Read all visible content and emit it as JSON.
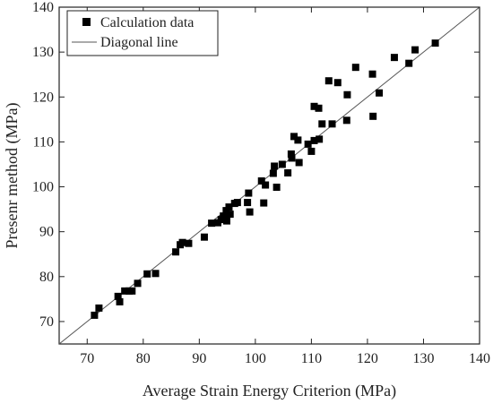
{
  "chart_data": {
    "type": "scatter",
    "xlabel": "Average Strain Energy Criterion (MPa)",
    "ylabel": "Presenr method (MPa)",
    "xlim": [
      65,
      140
    ],
    "ylim": [
      65,
      140
    ],
    "xticks": [
      70,
      80,
      90,
      100,
      110,
      120,
      130,
      140
    ],
    "yticks": [
      70,
      80,
      90,
      100,
      110,
      120,
      130,
      140
    ],
    "grid": false,
    "legend": "top-left",
    "series": [
      {
        "name": "Calculation data",
        "marker": "square",
        "color": "#000000",
        "points": [
          [
            71.3,
            71.4
          ],
          [
            72.1,
            73.0
          ],
          [
            75.5,
            75.6
          ],
          [
            75.8,
            74.4
          ],
          [
            76.7,
            76.8
          ],
          [
            77.5,
            76.8
          ],
          [
            78.0,
            76.8
          ],
          [
            79.0,
            78.5
          ],
          [
            80.7,
            80.6
          ],
          [
            82.2,
            80.7
          ],
          [
            85.8,
            85.5
          ],
          [
            86.6,
            87.1
          ],
          [
            87.0,
            87.6
          ],
          [
            88.1,
            87.4
          ],
          [
            90.9,
            88.8
          ],
          [
            92.2,
            91.9
          ],
          [
            93.3,
            92.0
          ],
          [
            93.9,
            92.7
          ],
          [
            94.3,
            93.5
          ],
          [
            94.8,
            94.7
          ],
          [
            94.9,
            92.4
          ],
          [
            95.3,
            95.5
          ],
          [
            95.5,
            93.9
          ],
          [
            96.3,
            96.3
          ],
          [
            96.8,
            96.5
          ],
          [
            98.6,
            96.5
          ],
          [
            98.8,
            98.6
          ],
          [
            99.0,
            94.4
          ],
          [
            101.1,
            101.3
          ],
          [
            101.5,
            96.4
          ],
          [
            101.8,
            100.4
          ],
          [
            103.2,
            103.0
          ],
          [
            103.4,
            104.6
          ],
          [
            103.8,
            99.9
          ],
          [
            104.8,
            105.0
          ],
          [
            105.8,
            103.1
          ],
          [
            106.4,
            107.3
          ],
          [
            106.5,
            106.4
          ],
          [
            106.9,
            111.2
          ],
          [
            107.6,
            110.4
          ],
          [
            107.8,
            105.4
          ],
          [
            109.4,
            109.5
          ],
          [
            110.0,
            107.9
          ],
          [
            110.5,
            110.3
          ],
          [
            110.5,
            117.9
          ],
          [
            111.3,
            117.5
          ],
          [
            111.4,
            110.6
          ],
          [
            111.9,
            114.0
          ],
          [
            113.1,
            123.6
          ],
          [
            113.7,
            114.0
          ],
          [
            114.7,
            123.2
          ],
          [
            116.3,
            114.8
          ],
          [
            116.4,
            120.5
          ],
          [
            117.9,
            126.6
          ],
          [
            120.9,
            125.1
          ],
          [
            121.0,
            115.7
          ],
          [
            122.1,
            120.9
          ],
          [
            124.8,
            128.8
          ],
          [
            127.4,
            127.5
          ],
          [
            128.5,
            130.5
          ],
          [
            132.1,
            132.0
          ]
        ]
      },
      {
        "name": "Diagonal line",
        "type": "line",
        "color": "#555555",
        "x": [
          65,
          140
        ],
        "y": [
          65,
          140
        ]
      }
    ]
  }
}
